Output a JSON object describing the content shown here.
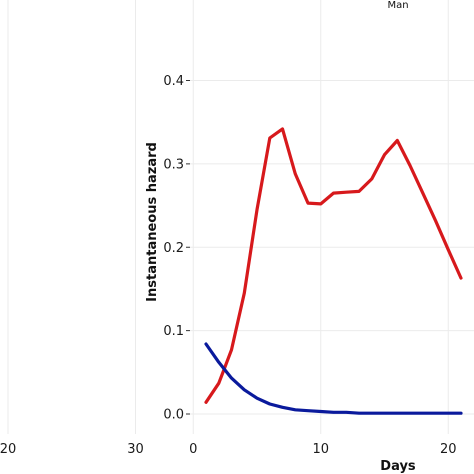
{
  "chart_data": [
    {
      "type": "line",
      "panel": "left",
      "title": "",
      "xlabel": "",
      "ylabel": "",
      "x_ticks": [
        20,
        30
      ],
      "xlim": [
        16,
        38
      ],
      "series": []
    },
    {
      "type": "line",
      "panel": "right",
      "title": "Man",
      "xlabel": "Days",
      "ylabel": "Instantaneous hazard",
      "xlim": [
        -1,
        22
      ],
      "ylim": [
        0,
        0.4
      ],
      "x_ticks": [
        0,
        10,
        20
      ],
      "y_ticks": [
        0.0,
        0.1,
        0.2,
        0.3,
        0.4
      ],
      "y_tick_labels": [
        "0.0",
        "0.1",
        "0.2",
        "0.3",
        "0.4"
      ],
      "grid": true,
      "series": [
        {
          "color": "#d7191c",
          "x": [
            1,
            2,
            3,
            4,
            5,
            6,
            7,
            8,
            9,
            10,
            11,
            12,
            13,
            14,
            15,
            16,
            17,
            18,
            19,
            20,
            21
          ],
          "y": [
            0.014,
            0.037,
            0.077,
            0.145,
            0.245,
            0.331,
            0.342,
            0.288,
            0.253,
            0.252,
            0.265,
            0.266,
            0.267,
            0.282,
            0.311,
            0.328,
            0.298,
            0.265,
            0.232,
            0.197,
            0.163
          ]
        },
        {
          "color": "#0a1a9c",
          "x": [
            1,
            2,
            3,
            4,
            5,
            6,
            7,
            8,
            9,
            10,
            11,
            12,
            13,
            14,
            15,
            16,
            17,
            18,
            19,
            20,
            21
          ],
          "y": [
            0.084,
            0.062,
            0.043,
            0.029,
            0.019,
            0.012,
            0.008,
            0.005,
            0.004,
            0.003,
            0.002,
            0.002,
            0.001,
            0.001,
            0.001,
            0.001,
            0.001,
            0.001,
            0.001,
            0.001,
            0.001
          ]
        }
      ]
    }
  ]
}
